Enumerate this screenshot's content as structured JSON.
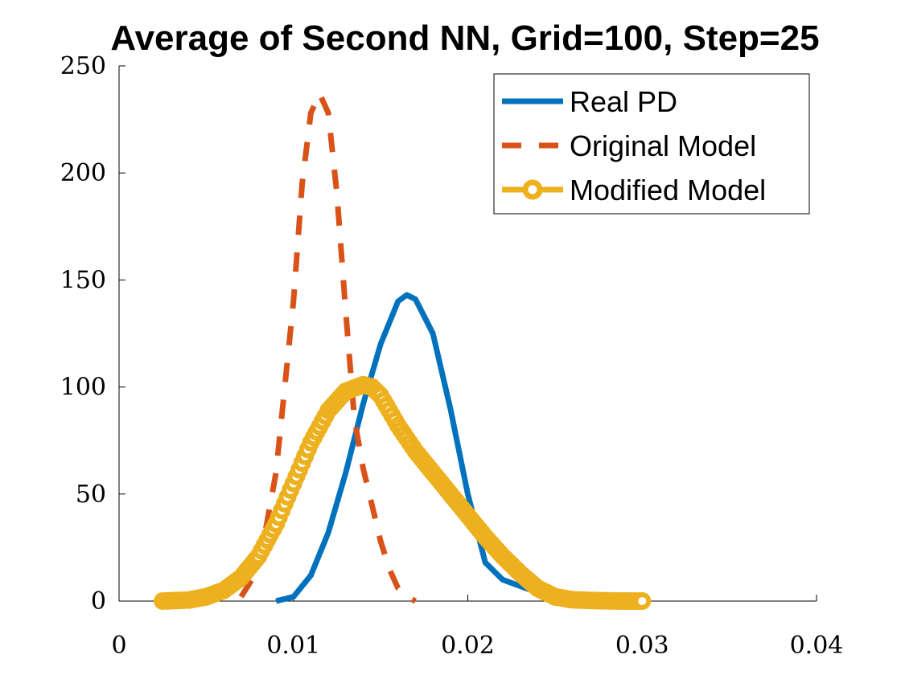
{
  "chart_data": {
    "type": "line",
    "title": "Average of Second NN, Grid=100, Step=25",
    "xlabel": "",
    "ylabel": "",
    "xlim": [
      0,
      0.04
    ],
    "ylim": [
      0,
      250
    ],
    "xticks": [
      0,
      0.01,
      0.02,
      0.03,
      0.04
    ],
    "xtick_labels": [
      "0",
      "0.01",
      "0.02",
      "0.03",
      "0.04"
    ],
    "yticks": [
      0,
      50,
      100,
      150,
      200,
      250
    ],
    "ytick_labels": [
      "0",
      "50",
      "100",
      "150",
      "200",
      "250"
    ],
    "grid": false,
    "legend_position": "top-right",
    "series": [
      {
        "name": "Real PD",
        "color": "#0072BD",
        "line_style": "solid",
        "marker": "none",
        "x": [
          0.009,
          0.01,
          0.011,
          0.012,
          0.013,
          0.014,
          0.015,
          0.016,
          0.0165,
          0.017,
          0.018,
          0.019,
          0.02,
          0.021,
          0.022,
          0.023,
          0.024,
          0.025,
          0.026,
          0.027
        ],
        "y": [
          0,
          2,
          12,
          32,
          60,
          92,
          120,
          140,
          143,
          141,
          125,
          90,
          50,
          18,
          10,
          7,
          4,
          1.5,
          0.5,
          0
        ]
      },
      {
        "name": "Original Model",
        "color": "#D95319",
        "line_style": "dashed",
        "marker": "none",
        "x": [
          0.007,
          0.008,
          0.009,
          0.01,
          0.0105,
          0.011,
          0.0115,
          0.012,
          0.0125,
          0.013,
          0.0135,
          0.014,
          0.0145,
          0.015,
          0.0155,
          0.016,
          0.0165,
          0.017
        ],
        "y": [
          2,
          15,
          60,
          140,
          195,
          228,
          237,
          228,
          190,
          135,
          85,
          62,
          45,
          28,
          15,
          6,
          2,
          0
        ]
      },
      {
        "name": "Modified Model",
        "color": "#EDB120",
        "line_style": "solid",
        "marker": "circle",
        "x": [
          0.0025,
          0.004,
          0.005,
          0.006,
          0.007,
          0.008,
          0.009,
          0.01,
          0.011,
          0.012,
          0.013,
          0.014,
          0.0145,
          0.015,
          0.016,
          0.017,
          0.018,
          0.019,
          0.02,
          0.021,
          0.022,
          0.023,
          0.024,
          0.025,
          0.026,
          0.027,
          0.028,
          0.029,
          0.03
        ],
        "y": [
          0,
          0.5,
          2,
          5,
          11,
          21,
          36,
          55,
          74,
          89,
          98,
          101,
          100,
          96,
          82,
          70,
          60,
          50,
          40,
          30,
          21,
          13,
          6,
          2,
          0.6,
          0.3,
          0.1,
          0,
          0
        ]
      }
    ]
  }
}
